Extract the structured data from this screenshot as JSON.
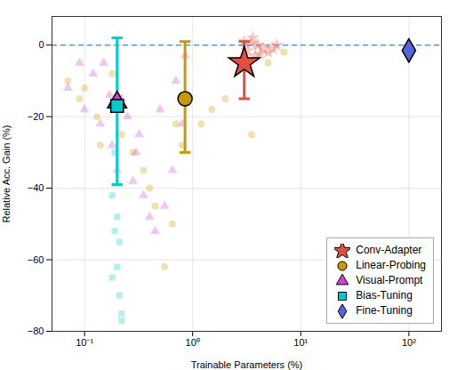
{
  "chart_data": {
    "type": "scatter",
    "xlabel": "Trainable Parameters (%)",
    "ylabel": "Relative Acc. Gain (%)",
    "log": "x",
    "xlim": [
      0.05,
      200
    ],
    "xticks": [
      {
        "value": 0.1,
        "label": "10⁻¹"
      },
      {
        "value": 1,
        "label": "10⁰"
      },
      {
        "value": 10,
        "label": "10¹"
      },
      {
        "value": 100,
        "label": "10²"
      }
    ],
    "ylim": [
      -80,
      8
    ],
    "yticks": [
      0,
      -20,
      -40,
      -60,
      -80
    ],
    "grid": true,
    "legend": "lower right",
    "reference_line": {
      "y": 0,
      "color": "steelblue",
      "line_style": "dashed"
    },
    "series": [
      {
        "name": "Conv-Adapter",
        "color": "#e05040",
        "marker": "star",
        "x": [
          3.2,
          3.5,
          3.8,
          4.5,
          5.0,
          4.0,
          2.8,
          3.0,
          4.2,
          3.6,
          5.5,
          6.0
        ],
        "values": [
          -1.5,
          0.5,
          -3.0,
          -1.0,
          -2.0,
          0.0,
          -4.0,
          1.0,
          -2.5,
          2.0,
          -1.0,
          0.0
        ],
        "mean_x": 3.0,
        "mean_y": -5.0,
        "err_low": 10.0,
        "err_high": 6.0
      },
      {
        "name": "Linear-Probing",
        "color": "#cc9900",
        "marker": "circle",
        "x": [
          0.07,
          0.1,
          0.13,
          0.18,
          0.22,
          0.28,
          0.35,
          0.45,
          0.55,
          0.65,
          0.8,
          1.2,
          1.5,
          2.0,
          3.5,
          5.0,
          7.0,
          0.09,
          0.14,
          0.4,
          0.7
        ],
        "values": [
          -10,
          -12,
          -20,
          -8,
          -25,
          -30,
          -35,
          -45,
          -62,
          -50,
          -28,
          -22,
          -18,
          -15,
          -25,
          -5,
          -2,
          -15,
          -28,
          -40,
          -22
        ],
        "mean_x": 0.85,
        "mean_y": -15.0,
        "err_low": 15.0,
        "err_high": 16.0
      },
      {
        "name": "Visual-Prompt",
        "color": "#cc44cc",
        "marker": "triangle",
        "x": [
          0.07,
          0.1,
          0.14,
          0.18,
          0.22,
          0.28,
          0.35,
          0.45,
          0.55,
          0.65,
          0.3,
          0.12,
          0.17,
          0.25,
          0.4,
          0.2,
          0.09,
          0.32,
          0.5,
          0.7,
          0.8,
          0.85,
          0.15
        ],
        "values": [
          -12,
          -18,
          -22,
          -28,
          -15,
          -38,
          -42,
          -52,
          -45,
          -35,
          -30,
          -8,
          -14,
          -20,
          -48,
          -35,
          -5,
          -25,
          -18,
          -10,
          -22,
          -3,
          -5
        ],
        "mean_x": 0.2,
        "mean_y": -16.0
      },
      {
        "name": "Bias-Tuning",
        "color": "#00cccc",
        "marker": "square",
        "x": [
          0.18,
          0.19,
          0.2,
          0.21,
          0.22,
          0.19,
          0.21,
          0.2,
          0.18,
          0.22
        ],
        "values": [
          -42,
          -52,
          -62,
          -70,
          -77,
          -30,
          -55,
          -48,
          -65,
          -75
        ],
        "mean_x": 0.2,
        "mean_y": -17.0,
        "err_low": 22.0,
        "err_high": 19.0
      },
      {
        "name": "Fine-Tuning",
        "color": "#5566dd",
        "marker": "diamond",
        "mean_x": 100.0,
        "mean_y": -1.5
      }
    ]
  }
}
